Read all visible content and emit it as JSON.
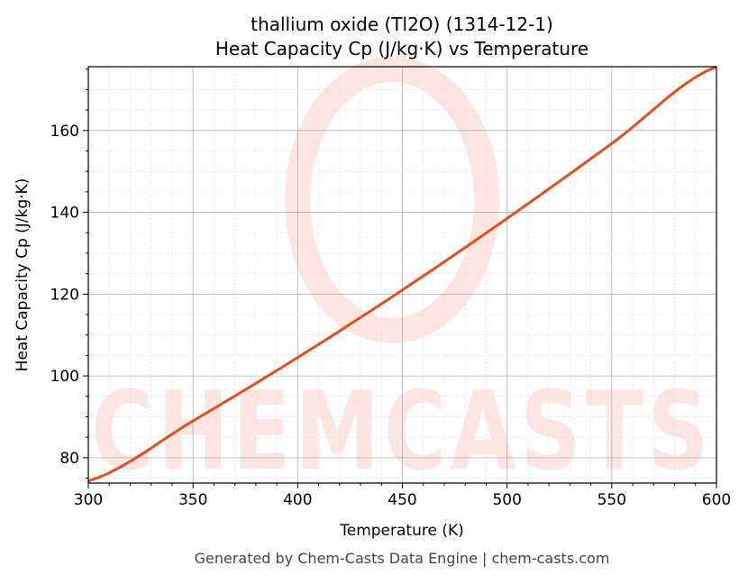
{
  "chart_data": {
    "type": "line",
    "title": "thallium oxide (Tl2O) (1314-12-1)",
    "subtitle": "Heat Capacity Cp (J/kg·K) vs Temperature",
    "xlabel": "Temperature (K)",
    "ylabel": "Heat Capacity Cp (J/kg·K)",
    "xlim": [
      300,
      600
    ],
    "ylim": [
      73.8,
      175.6
    ],
    "xticks": [
      300,
      350,
      400,
      450,
      500,
      550,
      600
    ],
    "yticks": [
      80,
      100,
      120,
      140,
      160
    ],
    "grid": true,
    "line_color": "#e05020",
    "x": [
      300,
      350,
      400,
      450,
      500,
      550,
      600
    ],
    "y": [
      74.3,
      89.0,
      104.5,
      121.0,
      138.5,
      156.8,
      175.6
    ]
  },
  "watermark": "CHEMCASTS",
  "footer": "Generated by Chem-Casts Data Engine | chem-casts.com"
}
